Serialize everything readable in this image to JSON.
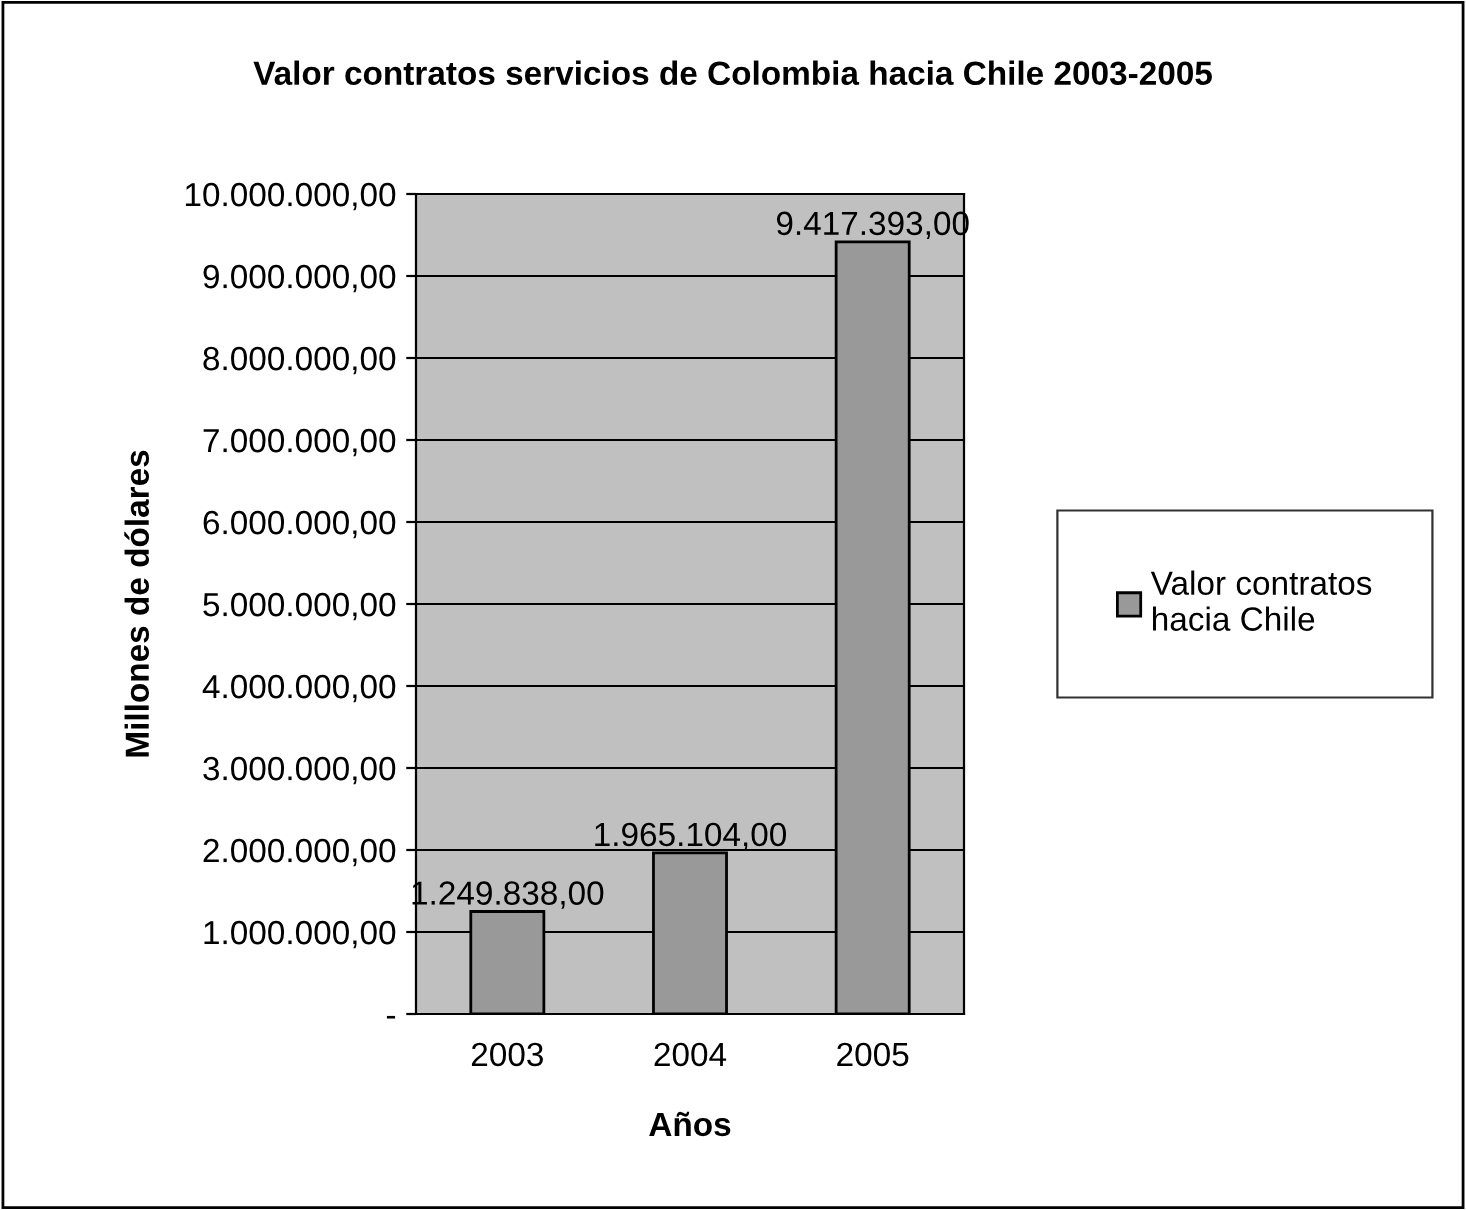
{
  "chart_data": {
    "type": "bar",
    "title": "Valor contratos servicios de Colombia hacia Chile 2003-2005",
    "xlabel": "Años",
    "ylabel": "Millones de dólares",
    "categories": [
      "2003",
      "2004",
      "2005"
    ],
    "series": [
      {
        "name": "Valor contratos hacia Chile",
        "color": "#999999",
        "values": [
          1249838,
          1965104,
          9417393
        ],
        "value_labels": [
          "1.249.838,00",
          "1.965.104,00",
          "9.417.393,00"
        ]
      }
    ],
    "ylim": [
      0,
      10000000
    ],
    "yticks": [
      {
        "value": 0,
        "label": "-"
      },
      {
        "value": 1000000,
        "label": "1.000.000,00"
      },
      {
        "value": 2000000,
        "label": "2.000.000,00"
      },
      {
        "value": 3000000,
        "label": "3.000.000,00"
      },
      {
        "value": 4000000,
        "label": "4.000.000,00"
      },
      {
        "value": 5000000,
        "label": "5.000.000,00"
      },
      {
        "value": 6000000,
        "label": "6.000.000,00"
      },
      {
        "value": 7000000,
        "label": "7.000.000,00"
      },
      {
        "value": 8000000,
        "label": "8.000.000,00"
      },
      {
        "value": 9000000,
        "label": "9.000.000,00"
      },
      {
        "value": 10000000,
        "label": "10.000.000,00"
      }
    ],
    "grid": "y",
    "legend": "right"
  }
}
